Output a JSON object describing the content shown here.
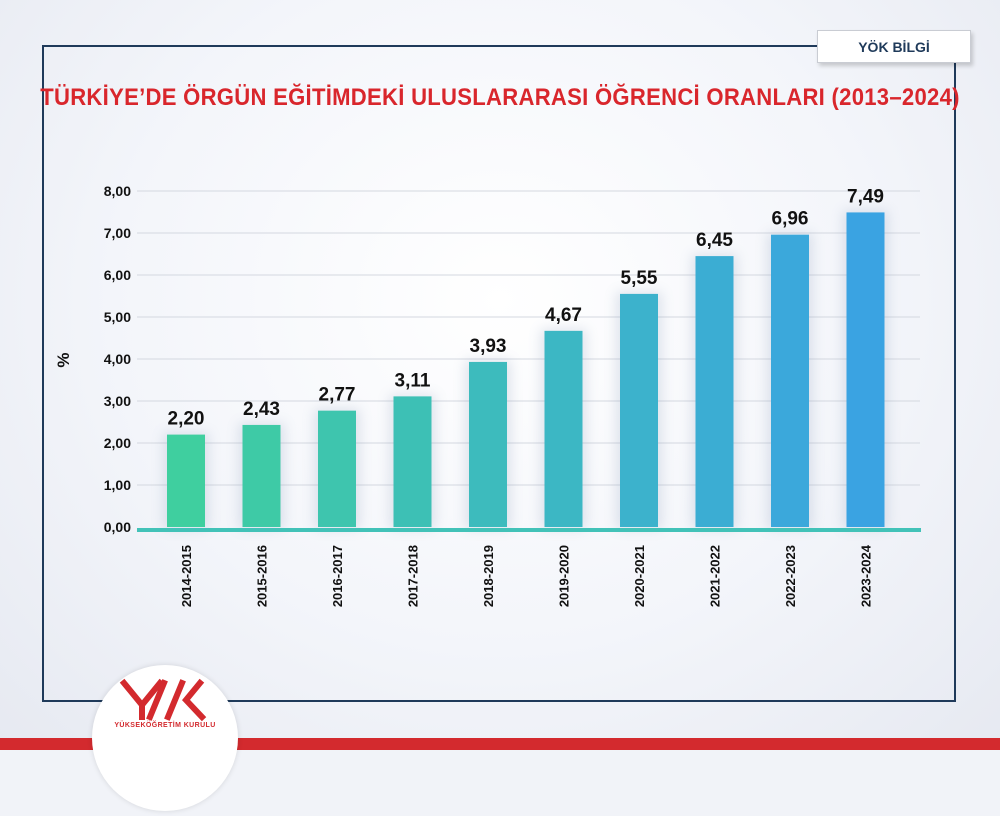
{
  "badge": {
    "label": "YÖK BİLGİ"
  },
  "title": "TÜRKİYE’DE ÖRGÜN EĞİTİMDEKİ ULUSLARARASI ÖĞRENCİ ORANLARI (2013–2024)",
  "logo": {
    "text": "YÜKSEKÖĞRETİM KURULU",
    "mark": "yok-logo-icon"
  },
  "colors": {
    "title": "#d9262c",
    "frame": "#1f3a5a",
    "bar_start": "#3fcf9f",
    "bar_end": "#3aa3e2",
    "brand_red": "#d32a2e"
  },
  "chart_data": {
    "type": "bar",
    "title": "TÜRKİYE’DE ÖRGÜN EĞİTİMDEKİ ULUSLARARASI ÖĞRENCİ ORANLARI (2013–2024)",
    "ylabel": "%",
    "xlabel": "",
    "ylim": [
      0,
      8
    ],
    "yticks": [
      "0,00",
      "1,00",
      "2,00",
      "3,00",
      "4,00",
      "5,00",
      "6,00",
      "7,00",
      "8,00"
    ],
    "grid": true,
    "categories": [
      "2014-2015",
      "2015-2016",
      "2016-2017",
      "2017-2018",
      "2018-2019",
      "2019-2020",
      "2020-2021",
      "2021-2022",
      "2022-2023",
      "2023-2024"
    ],
    "values": [
      2.2,
      2.43,
      2.77,
      3.11,
      3.93,
      4.67,
      5.55,
      6.45,
      6.96,
      7.49
    ],
    "value_labels": [
      "2,20",
      "2,43",
      "2,77",
      "3,11",
      "3,93",
      "4,67",
      "5,55",
      "6,45",
      "6,96",
      "7,49"
    ]
  }
}
